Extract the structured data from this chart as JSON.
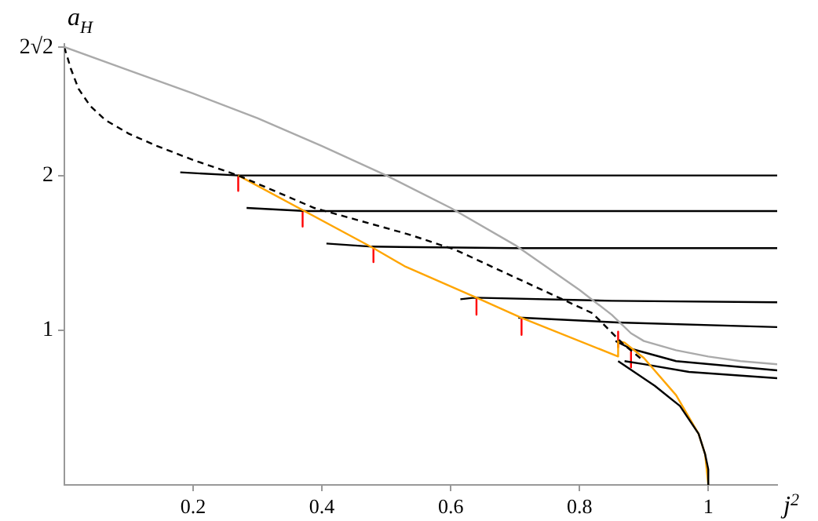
{
  "chart_data": {
    "type": "line",
    "xlabel": "j$^{2}$",
    "ylabel": "a$_{H}$",
    "xlim": [
      0,
      1.107
    ],
    "ylim": [
      0,
      2.85
    ],
    "xticks": [
      0.2,
      0.4,
      0.6,
      0.8,
      1
    ],
    "yticks": [
      1,
      2,
      {
        "value": 2.828,
        "label": "2√2"
      }
    ],
    "grid": false,
    "legend": false,
    "marker": "none",
    "line_style": "solid",
    "series": [
      {
        "color": "#aaaaaa",
        "x": [
          0,
          0.1,
          0.2,
          0.3,
          0.4,
          0.5,
          0.6,
          0.7,
          0.8,
          0.85,
          0.88,
          0.9,
          0.95,
          1.0,
          1.05,
          1.107
        ],
        "values": [
          2.83,
          2.68,
          2.53,
          2.37,
          2.19,
          2.0,
          1.79,
          1.55,
          1.26,
          1.1,
          0.98,
          0.93,
          0.87,
          0.83,
          0.8,
          0.78
        ]
      },
      {
        "color": "#000000",
        "line_style": "dashed",
        "x": [
          0,
          0.002,
          0.005,
          0.01,
          0.022,
          0.04,
          0.063,
          0.1,
          0.144,
          0.2,
          0.27,
          0.388,
          0.534,
          0.607,
          0.82,
          0.868,
          0.9
        ],
        "values": [
          2.83,
          2.8,
          2.76,
          2.69,
          2.56,
          2.45,
          2.36,
          2.27,
          2.19,
          2.1,
          2.0,
          1.79,
          1.62,
          1.52,
          1.11,
          0.91,
          0.8
        ]
      },
      {
        "color": "#000000",
        "x": [
          0.86,
          0.917,
          0.956,
          0.985,
          0.995,
          1.0,
          1.0
        ],
        "values": [
          0.8,
          0.64,
          0.51,
          0.33,
          0.2,
          0.1,
          0
        ]
      },
      {
        "color": "#ffa500",
        "x": [
          0.27,
          0.48,
          0.53,
          0.64,
          0.71,
          0.86,
          0.86,
          0.87,
          0.9,
          0.95,
          0.985,
          0.995,
          1.0
        ],
        "values": [
          2.0,
          1.53,
          1.41,
          1.21,
          1.08,
          0.83,
          0.93,
          0.92,
          0.82,
          0.58,
          0.33,
          0.2,
          0
        ]
      },
      {
        "color": "#000000",
        "x": [
          0.18,
          0.27,
          0.5,
          1.107
        ],
        "values": [
          2.02,
          2.0,
          2.0,
          2.0
        ]
      },
      {
        "color": "#000000",
        "x": [
          0.283,
          0.375,
          0.6,
          1.107
        ],
        "values": [
          1.79,
          1.77,
          1.77,
          1.77
        ]
      },
      {
        "color": "#000000",
        "x": [
          0.407,
          0.478,
          0.7,
          1.107
        ],
        "values": [
          1.56,
          1.54,
          1.53,
          1.53
        ]
      },
      {
        "color": "#000000",
        "x": [
          0.615,
          0.637,
          0.85,
          1.107
        ],
        "values": [
          1.2,
          1.21,
          1.19,
          1.18
        ]
      },
      {
        "color": "#000000",
        "x": [
          0.705,
          0.712,
          0.86,
          1.107
        ],
        "values": [
          1.08,
          1.08,
          1.05,
          1.02
        ]
      },
      {
        "color": "#000000",
        "x": [
          0.856,
          0.88,
          0.95,
          1.107
        ],
        "values": [
          0.93,
          0.88,
          0.8,
          0.74
        ]
      },
      {
        "color": "#000000",
        "x": [
          0.87,
          0.9,
          0.97,
          1.107
        ],
        "values": [
          0.8,
          0.78,
          0.73,
          0.69
        ]
      },
      {
        "color": "#ff0000",
        "x": [
          0.27,
          0.27
        ],
        "values": [
          2.0,
          1.9
        ]
      },
      {
        "color": "#ff0000",
        "x": [
          0.37,
          0.37
        ],
        "values": [
          1.77,
          1.67
        ]
      },
      {
        "color": "#ff0000",
        "x": [
          0.48,
          0.48
        ],
        "values": [
          1.54,
          1.44
        ]
      },
      {
        "color": "#ff0000",
        "x": [
          0.64,
          0.64
        ],
        "values": [
          1.2,
          1.1
        ]
      },
      {
        "color": "#ff0000",
        "x": [
          0.71,
          0.71
        ],
        "values": [
          1.07,
          0.97
        ]
      },
      {
        "color": "#ff0000",
        "x": [
          0.86,
          0.86
        ],
        "values": [
          0.99,
          0.89
        ]
      },
      {
        "color": "#ff0000",
        "x": [
          0.88,
          0.88
        ],
        "values": [
          0.86,
          0.76
        ]
      }
    ]
  }
}
